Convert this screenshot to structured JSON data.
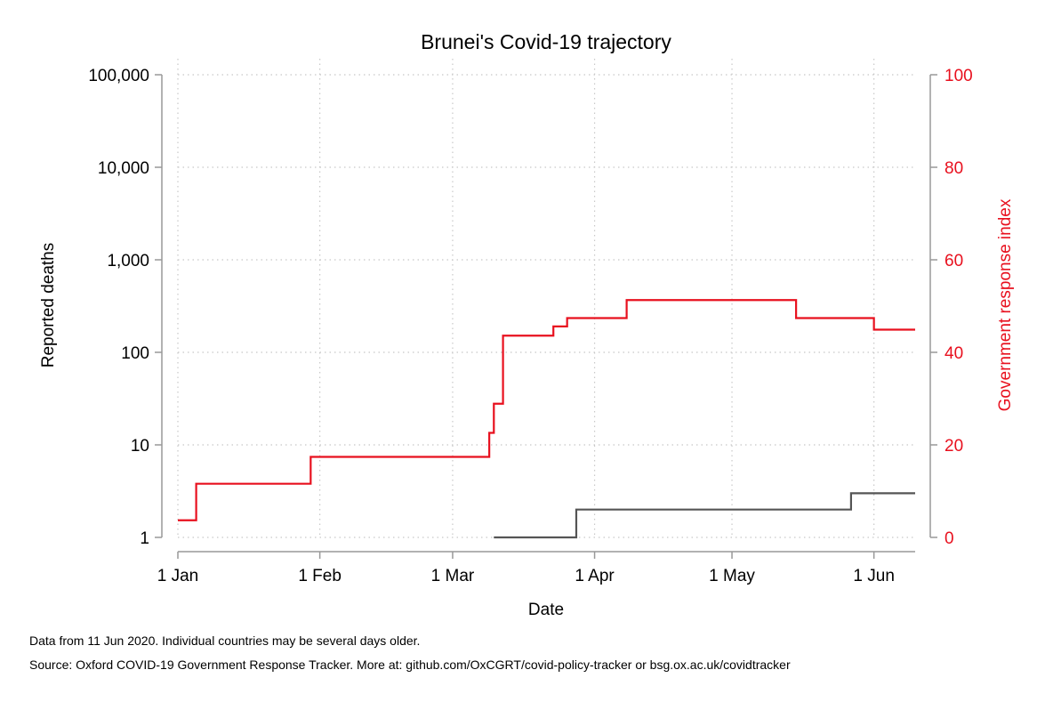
{
  "chart_data": {
    "type": "line",
    "title": "Brunei's Covid-19 trajectory",
    "xlabel": "Date",
    "ylabel_left": "Reported deaths",
    "ylabel_right": "Government response index",
    "x_ticks": [
      {
        "date": "2020-01-01",
        "label": "1 Jan"
      },
      {
        "date": "2020-02-01",
        "label": "1 Feb"
      },
      {
        "date": "2020-03-01",
        "label": "1 Mar"
      },
      {
        "date": "2020-04-01",
        "label": "1 Apr"
      },
      {
        "date": "2020-05-01",
        "label": "1 May"
      },
      {
        "date": "2020-06-01",
        "label": "1 Jun"
      }
    ],
    "xlim": [
      "2020-01-01",
      "2020-06-10"
    ],
    "y_left": {
      "scale": "log",
      "lim": [
        1,
        100000
      ],
      "ticks": [
        {
          "value": 1,
          "label": "1"
        },
        {
          "value": 10,
          "label": "10"
        },
        {
          "value": 100,
          "label": "100"
        },
        {
          "value": 1000,
          "label": "1,000"
        },
        {
          "value": 10000,
          "label": "10,000"
        },
        {
          "value": 100000,
          "label": "100,000"
        }
      ]
    },
    "y_right": {
      "scale": "linear",
      "lim": [
        0,
        100
      ],
      "ticks": [
        {
          "value": 0,
          "label": "0"
        },
        {
          "value": 20,
          "label": "20"
        },
        {
          "value": 40,
          "label": "40"
        },
        {
          "value": 60,
          "label": "60"
        },
        {
          "value": 80,
          "label": "80"
        },
        {
          "value": 100,
          "label": "100"
        }
      ]
    },
    "grid": true,
    "series": [
      {
        "axis": "right",
        "color": "#e8101e",
        "step": true,
        "points": [
          {
            "x": "2020-01-01",
            "y": 3.7
          },
          {
            "x": "2020-01-05",
            "y": 11.6
          },
          {
            "x": "2020-01-29",
            "y": 11.6
          },
          {
            "x": "2020-01-30",
            "y": 17.4
          },
          {
            "x": "2020-03-08",
            "y": 17.4
          },
          {
            "x": "2020-03-09",
            "y": 22.6
          },
          {
            "x": "2020-03-10",
            "y": 28.9
          },
          {
            "x": "2020-03-12",
            "y": 43.6
          },
          {
            "x": "2020-03-22",
            "y": 43.6
          },
          {
            "x": "2020-03-23",
            "y": 45.6
          },
          {
            "x": "2020-03-26",
            "y": 47.4
          },
          {
            "x": "2020-04-07",
            "y": 47.4
          },
          {
            "x": "2020-04-08",
            "y": 51.3
          },
          {
            "x": "2020-05-14",
            "y": 51.3
          },
          {
            "x": "2020-05-15",
            "y": 47.4
          },
          {
            "x": "2020-05-31",
            "y": 47.4
          },
          {
            "x": "2020-06-01",
            "y": 44.9
          },
          {
            "x": "2020-06-10",
            "y": 44.9
          }
        ]
      },
      {
        "axis": "left",
        "color": "#555555",
        "step": true,
        "points": [
          {
            "x": "2020-03-10",
            "y": 1
          },
          {
            "x": "2020-03-27",
            "y": 1
          },
          {
            "x": "2020-03-28",
            "y": 2
          },
          {
            "x": "2020-05-26",
            "y": 2
          },
          {
            "x": "2020-05-27",
            "y": 3
          },
          {
            "x": "2020-06-10",
            "y": 3
          }
        ]
      }
    ]
  },
  "footnotes": {
    "line1": "Data from 11 Jun 2020. Individual countries may be several days older.",
    "line2": "Source: Oxford COVID-19 Government Response Tracker. More at: github.com/OxCGRT/covid-policy-tracker or bsg.ox.ac.uk/covidtracker"
  },
  "colors": {
    "response_axis": "#e8101e",
    "deaths_line": "#555555",
    "axis": "#999999",
    "grid": "#c8c8c8"
  }
}
